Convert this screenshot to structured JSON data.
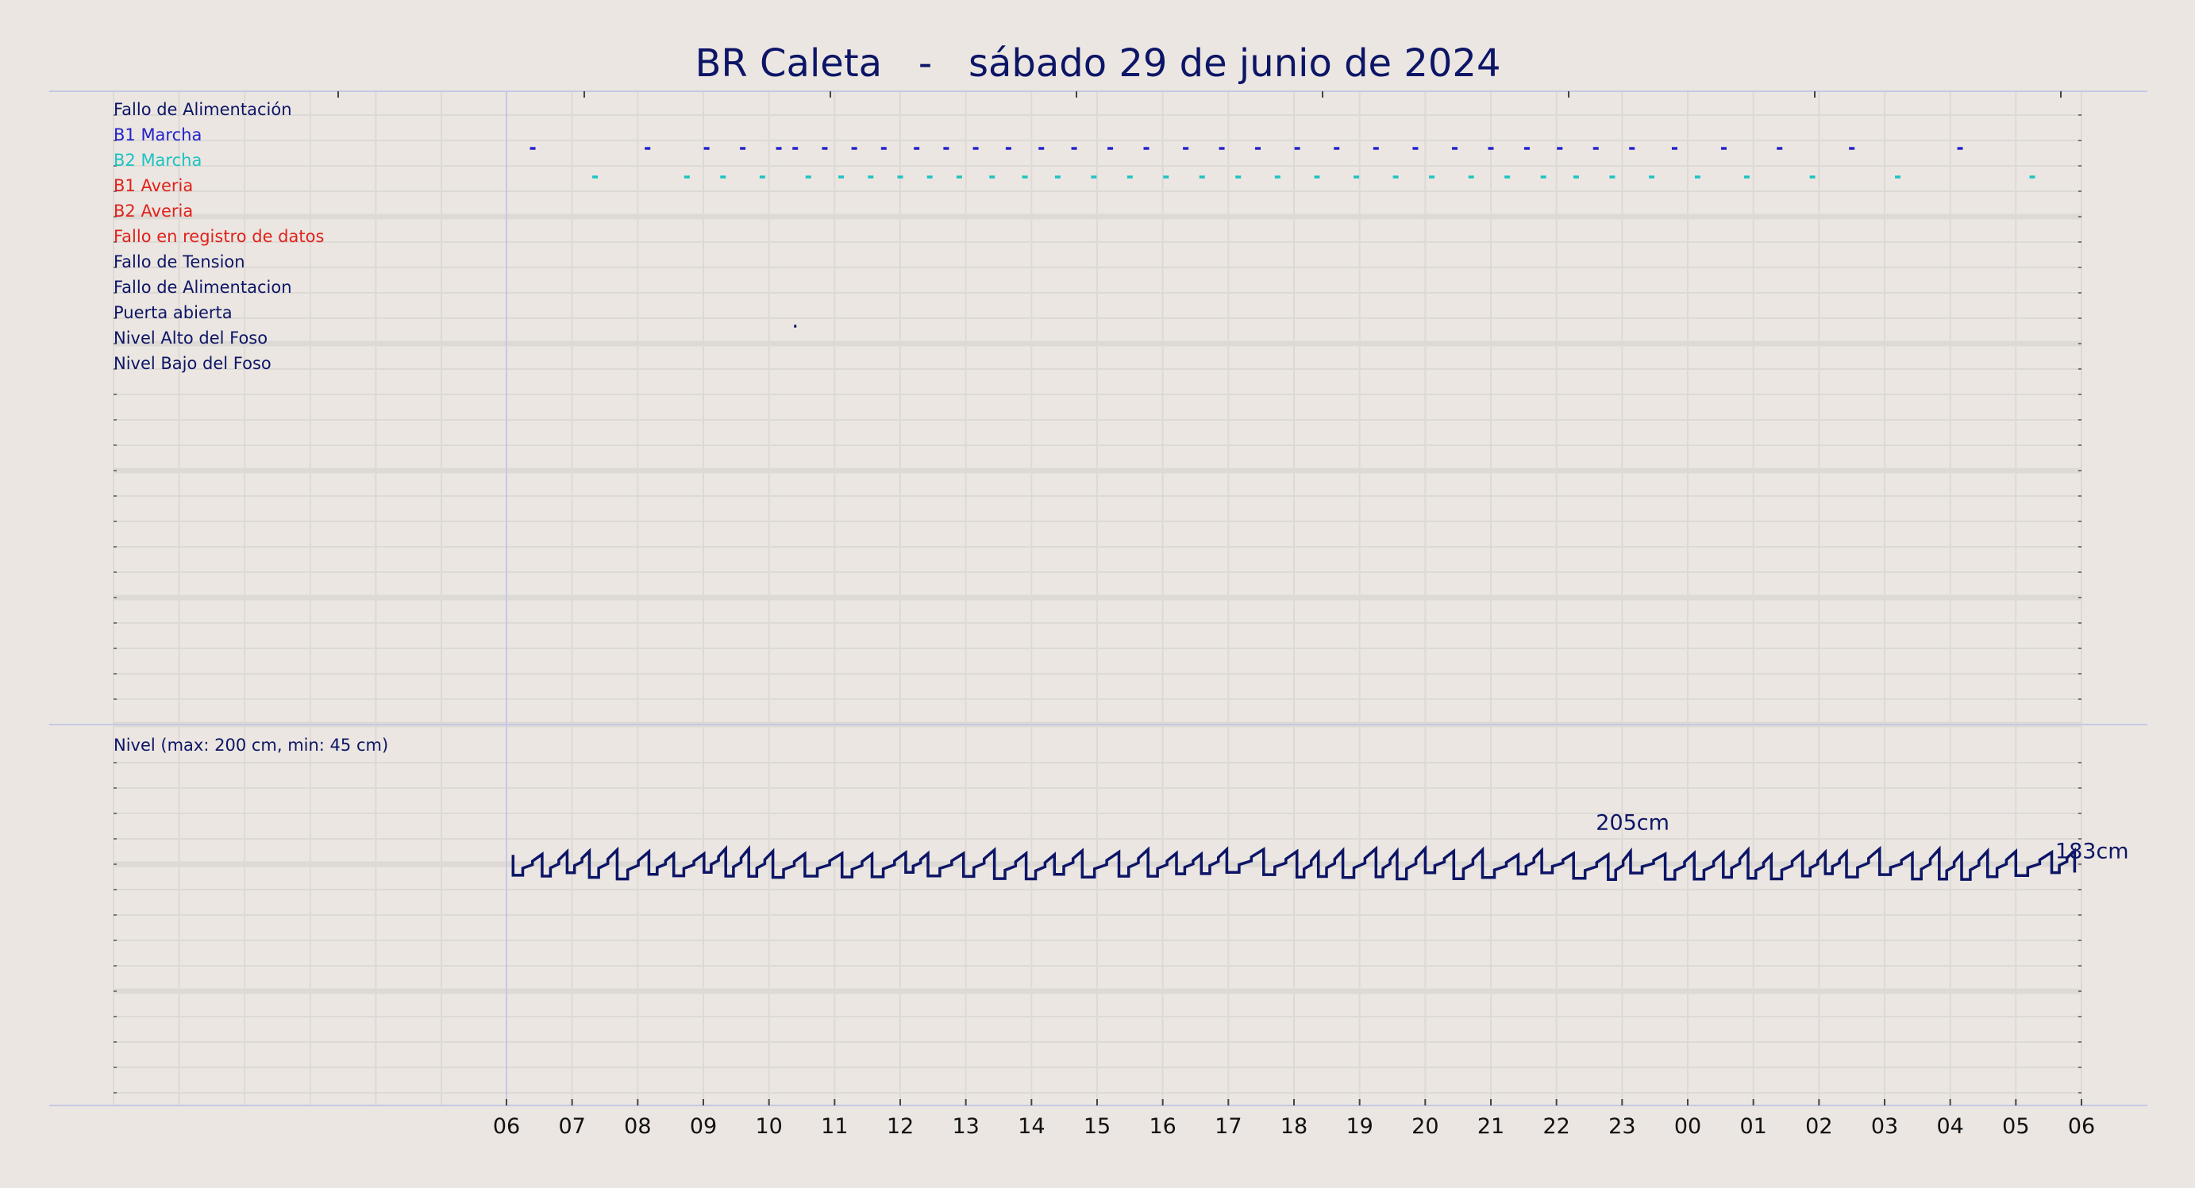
{
  "header": {
    "title": "BR Caleta   -   sábado 29 de junio de 2024"
  },
  "colors": {
    "background": "#ebe6e1",
    "grid": "#ddd9d5",
    "frame": "#c5c8e6",
    "title": "#0c1566",
    "navy": "#0c1566",
    "blue": "#2323cc",
    "cyan": "#1cc3c3",
    "red": "#e0221c"
  },
  "chart_data": [
    {
      "type": "event-timeline",
      "name": "alarms",
      "x_range": [
        "06:00",
        "06:00 (+1)"
      ],
      "rows": [
        {
          "label": "Fallo de Alimentación",
          "color": "#0c1566",
          "events_h": []
        },
        {
          "label": "B1 Marcha",
          "color": "#2323cc",
          "events_h": [
            6.4,
            8.15,
            9.05,
            9.6,
            10.15,
            10.4,
            10.85,
            11.3,
            11.75,
            12.25,
            12.7,
            13.15,
            13.65,
            14.15,
            14.65,
            15.2,
            15.75,
            16.35,
            16.9,
            17.45,
            18.05,
            18.65,
            19.25,
            19.85,
            20.45,
            21.0,
            21.55,
            22.05,
            22.6,
            23.15,
            23.8,
            0.55,
            1.4,
            2.5,
            4.15
          ]
        },
        {
          "label": "B2 Marcha",
          "color": "#1cc3c3",
          "events_h": [
            7.35,
            8.75,
            9.3,
            9.9,
            10.6,
            11.1,
            11.55,
            12.0,
            12.45,
            12.9,
            13.4,
            13.9,
            14.4,
            14.95,
            15.5,
            16.05,
            16.6,
            17.15,
            17.75,
            18.35,
            18.95,
            19.55,
            20.1,
            20.7,
            21.25,
            21.8,
            22.3,
            22.85,
            23.45,
            0.15,
            0.9,
            1.9,
            3.2,
            5.25
          ]
        },
        {
          "label": "B1 Averia",
          "color": "#e0221c",
          "events_h": []
        },
        {
          "label": "B2 Averia",
          "color": "#e0221c",
          "events_h": []
        },
        {
          "label": "Fallo en registro de datos",
          "color": "#e0221c",
          "events_h": []
        },
        {
          "label": "Fallo de Tension",
          "color": "#0c1566",
          "events_h": []
        },
        {
          "label": "Fallo de Alimentacion",
          "color": "#0c1566",
          "events_h": []
        },
        {
          "label": "Puerta abierta",
          "color": "#0c1566",
          "events_h": [
            10.4
          ]
        },
        {
          "label": "Nivel Alto del Foso",
          "color": "#0c1566",
          "events_h": []
        },
        {
          "label": "Nivel Bajo del Foso",
          "color": "#0c1566",
          "events_h": []
        }
      ]
    },
    {
      "type": "line",
      "step": true,
      "title": "Nivel (max: 200 cm, min: 45 cm)",
      "color": "#0c1566",
      "x_ticks": [
        "06",
        "07",
        "08",
        "09",
        "10",
        "11",
        "12",
        "13",
        "14",
        "15",
        "16",
        "17",
        "18",
        "19",
        "20",
        "21",
        "22",
        "23",
        "00",
        "01",
        "02",
        "03",
        "04",
        "05",
        "06"
      ],
      "y_range_cm": [
        0,
        280
      ],
      "series": [
        {
          "start_h": 6.1,
          "end_h": 30.0,
          "base_cm": 190,
          "min_cm": 170,
          "max_cm": 205
        }
      ],
      "annotations": [
        {
          "label": "205cm",
          "x_h": 22.6,
          "y_cm": 205
        },
        {
          "label": "183cm",
          "x_h": 29.6,
          "y_cm": 183
        }
      ]
    }
  ]
}
